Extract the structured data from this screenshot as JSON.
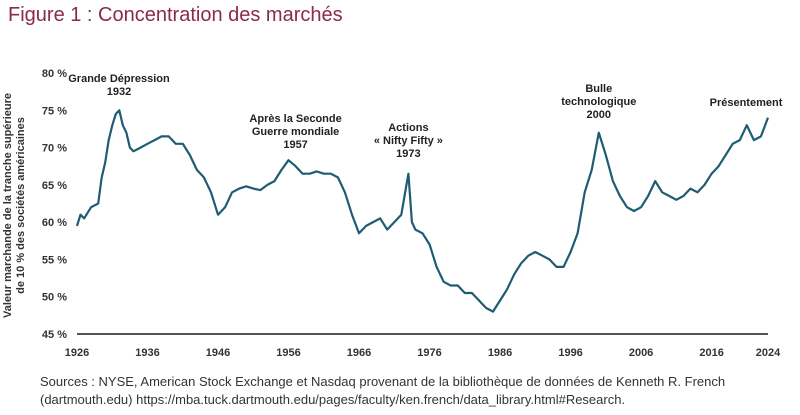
{
  "title": "Figure 1 : Concentration des marchés",
  "sources": "Sources : NYSE, American Stock Exchange et Nasdaq provenant de la bibliothèque de données de Kenneth R. French (dartmouth.edu) https://mba.tuck.dartmouth.edu/pages/faculty/ken.french/data_library.html#Research.",
  "colors": {
    "title": "#8a2b47",
    "line": "#1f5c74",
    "axis": "#555555"
  },
  "chart_data": {
    "type": "line",
    "ylabel_lines": [
      "Valeur marchande de la tranche supérieure",
      "de 10 % des sociétés américaines"
    ],
    "ylim": [
      45,
      80
    ],
    "xlim": [
      1926,
      2024
    ],
    "yticks": [
      45,
      50,
      55,
      60,
      65,
      70,
      75,
      80
    ],
    "ytick_labels": [
      "45 %",
      "50 %",
      "55 %",
      "60 %",
      "65 %",
      "70 %",
      "75 %",
      "80 %"
    ],
    "xticks": [
      1926,
      1936,
      1946,
      1956,
      1966,
      1976,
      1986,
      1996,
      2006,
      2016,
      2024
    ],
    "grid": false,
    "series": [
      {
        "x": [
          1926,
          1926.5,
          1927,
          1928,
          1929,
          1929.5,
          1930,
          1930.5,
          1931,
          1931.5,
          1932,
          1932.5,
          1933,
          1933.5,
          1934,
          1935,
          1936,
          1937,
          1938,
          1939,
          1940,
          1941,
          1942,
          1943,
          1944,
          1945,
          1946,
          1947,
          1948,
          1949,
          1950,
          1951,
          1952,
          1953,
          1954,
          1955,
          1956,
          1957,
          1958,
          1959,
          1960,
          1961,
          1962,
          1963,
          1964,
          1965,
          1966,
          1967,
          1968,
          1969,
          1970,
          1971,
          1972,
          1973,
          1973.5,
          1974,
          1975,
          1976,
          1977,
          1978,
          1979,
          1980,
          1981,
          1982,
          1983,
          1984,
          1985,
          1986,
          1987,
          1988,
          1989,
          1990,
          1991,
          1992,
          1993,
          1994,
          1995,
          1996,
          1997,
          1998,
          1999,
          2000,
          2001,
          2002,
          2003,
          2004,
          2005,
          2006,
          2007,
          2008,
          2009,
          2010,
          2011,
          2012,
          2013,
          2014,
          2015,
          2016,
          2017,
          2018,
          2019,
          2020,
          2021,
          2022,
          2023,
          2024
        ],
        "values": [
          59.5,
          61,
          60.5,
          62,
          62.5,
          66,
          68,
          71,
          73,
          74.5,
          75,
          73,
          72,
          70,
          69.5,
          70,
          70.5,
          71,
          71.5,
          71.5,
          70.5,
          70.5,
          69,
          67,
          66,
          64,
          61,
          62,
          64,
          64.5,
          64.8,
          64.5,
          64.3,
          65,
          65.5,
          67,
          68.3,
          67.5,
          66.5,
          66.5,
          66.8,
          66.5,
          66.5,
          66,
          64,
          61,
          58.5,
          59.5,
          60,
          60.5,
          59,
          60,
          61,
          66.5,
          60,
          59,
          58.5,
          57,
          54,
          52,
          51.5,
          51.5,
          50.5,
          50.5,
          49.5,
          48.5,
          48,
          49.5,
          51,
          53,
          54.5,
          55.5,
          56,
          55.5,
          55,
          54,
          54,
          56,
          58.5,
          64,
          67,
          72,
          69,
          65.5,
          63.5,
          62,
          61.5,
          62,
          63.5,
          65.5,
          64,
          63.5,
          63,
          63.5,
          64.5,
          64,
          65,
          66.5,
          67.5,
          69,
          70.5,
          71,
          73,
          71,
          71.5,
          74
        ]
      }
    ],
    "annotations": [
      {
        "lines": [
          "Grande Dépression",
          "1932"
        ],
        "x": 1932
      },
      {
        "lines": [
          "Après la Seconde",
          "Guerre mondiale",
          "1957"
        ],
        "x": 1957
      },
      {
        "lines": [
          "Actions",
          "« Nifty Fifty »",
          "1973"
        ],
        "x": 1973
      },
      {
        "lines": [
          "Bulle",
          "technologique",
          "2000"
        ],
        "x": 2000
      },
      {
        "lines": [
          "Présentement"
        ],
        "x": 2023
      }
    ]
  }
}
